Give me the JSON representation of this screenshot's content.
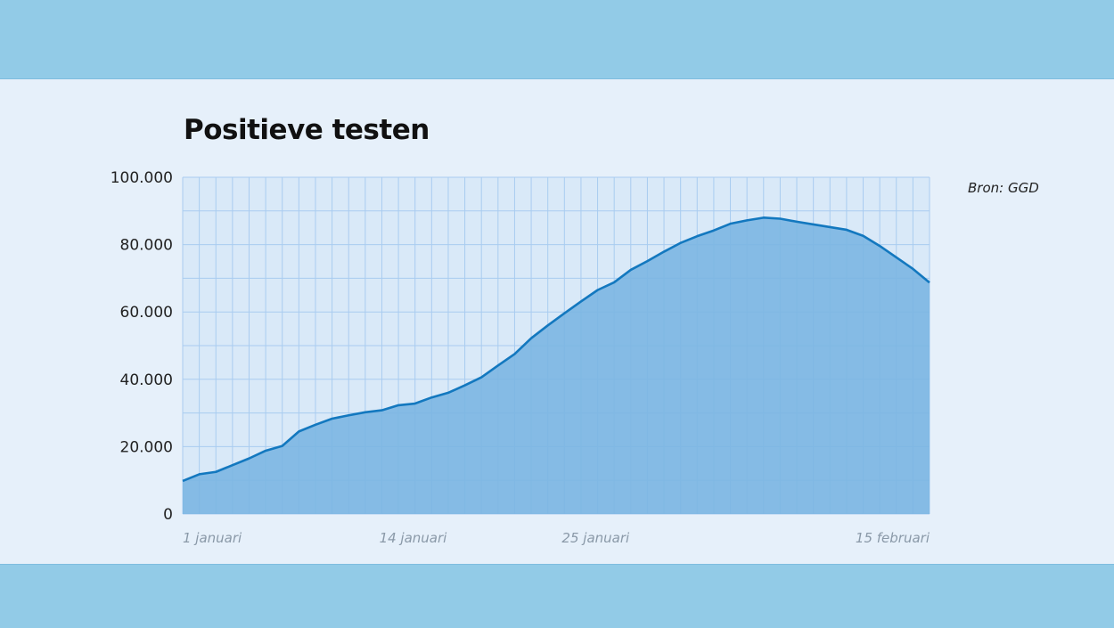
{
  "chart_data": {
    "type": "area",
    "title": "Positieve testen",
    "source": "Bron: GGD",
    "xlabel": "",
    "ylabel": "",
    "ylim": [
      0,
      100000
    ],
    "grid": true,
    "y_ticks": [
      {
        "value": 0,
        "label": "0"
      },
      {
        "value": 20000,
        "label": "20.000"
      },
      {
        "value": 40000,
        "label": "40.000"
      },
      {
        "value": 60000,
        "label": "60.000"
      },
      {
        "value": 80000,
        "label": "80.000"
      },
      {
        "value": 100000,
        "label": "100.000"
      }
    ],
    "x_ticks": [
      {
        "index": 0,
        "label": "1 januari"
      },
      {
        "index": 12,
        "label": "14 januari"
      },
      {
        "index": 23,
        "label": "25 januari"
      },
      {
        "index": 45,
        "label": "15 februari"
      }
    ],
    "x_start": "2022-01-01",
    "x_end": "2022-02-15",
    "values": [
      9800,
      11800,
      12500,
      14500,
      16500,
      18800,
      20200,
      24500,
      26500,
      28300,
      29300,
      30200,
      30800,
      32300,
      32800,
      34600,
      36000,
      38200,
      40600,
      44100,
      47500,
      52200,
      56000,
      59600,
      63100,
      66500,
      68800,
      72500,
      75100,
      77900,
      80500,
      82500,
      84200,
      86200,
      87200,
      88000,
      87700,
      86800,
      86000,
      85200,
      84400,
      82600,
      79600,
      76200,
      72800,
      68700
    ],
    "colors": {
      "line": "#1378bf",
      "fill": "#7bb6e2",
      "grid": "#a9ccf0",
      "plot_bg": "#d9e9f8"
    }
  }
}
